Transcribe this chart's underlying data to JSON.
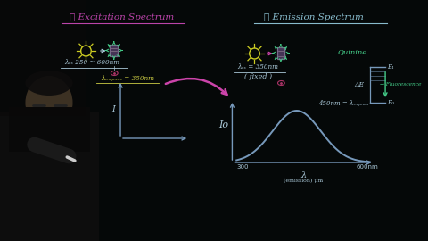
{
  "bg_color": "#050808",
  "title_excitation": "① Excitation Spectrum",
  "title_emission": "② Emission Spectrum",
  "title_excitation_color": "#bb44aa",
  "title_emission_color": "#88bbcc",
  "lambda_ex_label": "λₑₓ 250 ~ 600nm",
  "lambda_em_max_label": "λₑₘ,ₘₐₓ = 350nm",
  "lambda_ex2_label": "λₑₓ = 350nm",
  "fixed_label": "( fixed )",
  "annotation_450": "450nm = λₑₓ,ₘₐₓ",
  "x_label_emission": "λ",
  "x_sub_emission": "(emission) μm",
  "x_300": "300",
  "x_600": "600nm",
  "y_label_emission": "Iᴏ",
  "y_label_excitation": "I",
  "quinine_label": "Quinine",
  "delta_e_label": "ΔE",
  "e1_label": "E₁",
  "e0_label": "E₀",
  "fluorescence_label": "→ Fluorescence",
  "text_color_white": "#aac8d8",
  "text_color_green": "#44cc88",
  "text_color_pink": "#cc4488",
  "text_color_yellow": "#cccc44",
  "arrow_pink": "#cc44aa",
  "curve_color": "#7799bb",
  "axis_color": "#7799bb",
  "sun_color": "#cccc22",
  "cuvette_fill": "#443355",
  "cuvette_edge": "#776688",
  "energy_bar_color": "#7799bb",
  "eye_color": "#aa3366",
  "person_face_color": "#c8a070",
  "person_body_color": "#111111"
}
